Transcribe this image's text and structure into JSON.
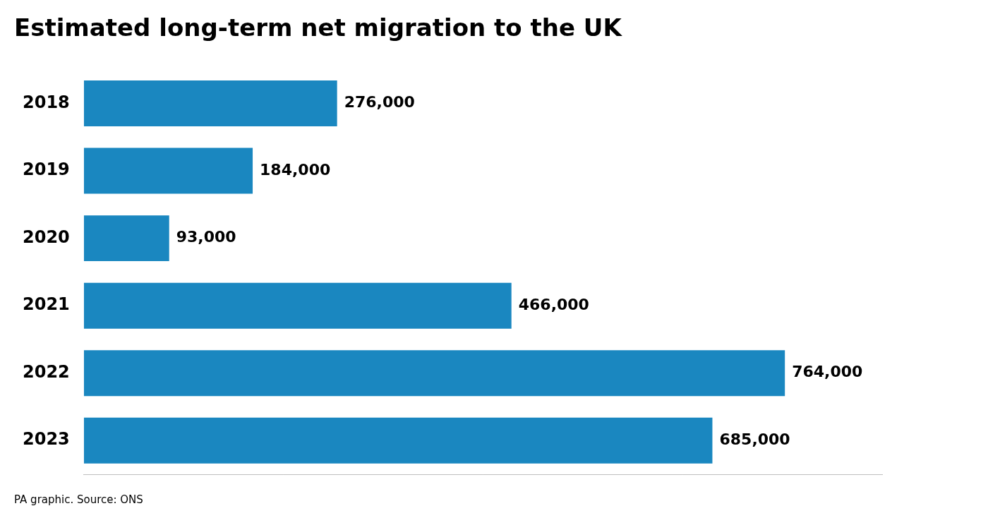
{
  "chart_data": {
    "type": "bar",
    "orientation": "horizontal",
    "title": "Estimated long-term net migration to the UK",
    "source": "PA graphic. Source: ONS",
    "categories": [
      "2018",
      "2019",
      "2020",
      "2021",
      "2022",
      "2023"
    ],
    "values": [
      276000,
      184000,
      93000,
      466000,
      764000,
      685000
    ],
    "value_labels": [
      "276,000",
      "184,000",
      "93,000",
      "466,000",
      "764,000",
      "685,000"
    ],
    "data_labels": true,
    "color": "#1a87c0",
    "xlim": [
      0,
      870000
    ],
    "tick_labels": "y",
    "grid": false
  }
}
